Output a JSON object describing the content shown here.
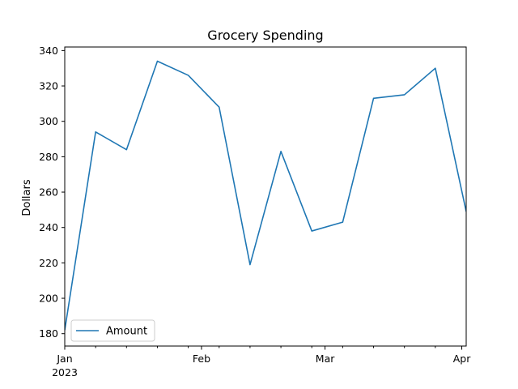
{
  "chart_data": {
    "type": "line",
    "title": "Grocery Spending",
    "xlabel": "",
    "ylabel": "Dollars",
    "x": [
      "2023-01-01",
      "2023-01-08",
      "2023-01-15",
      "2023-01-22",
      "2023-01-29",
      "2023-02-05",
      "2023-02-12",
      "2023-02-19",
      "2023-02-26",
      "2023-03-05",
      "2023-03-12",
      "2023-03-19",
      "2023-03-26",
      "2023-04-02"
    ],
    "series": [
      {
        "name": "Amount",
        "color": "#1f77b4",
        "values": [
          182,
          294,
          284,
          334,
          326,
          308,
          219,
          283,
          238,
          243,
          313,
          315,
          330,
          249
        ]
      }
    ],
    "xlim": [
      "2023-01-01",
      "2023-04-02"
    ],
    "ylim": [
      173,
      342
    ],
    "y_ticks": [
      180,
      200,
      220,
      240,
      260,
      280,
      300,
      320,
      340
    ],
    "x_major_ticks": [
      {
        "date": "2023-01-01",
        "label": "Jan",
        "sublabel": "2023"
      },
      {
        "date": "2023-02-01",
        "label": "Feb",
        "sublabel": ""
      },
      {
        "date": "2023-03-01",
        "label": "Mar",
        "sublabel": ""
      },
      {
        "date": "2023-04-01",
        "label": "Apr",
        "sublabel": ""
      }
    ],
    "x_minor_ticks": [
      "2023-01-08",
      "2023-01-15",
      "2023-01-22",
      "2023-01-29",
      "2023-02-05",
      "2023-02-12",
      "2023-02-19",
      "2023-02-26",
      "2023-03-05",
      "2023-03-12",
      "2023-03-19",
      "2023-03-26"
    ],
    "grid": false,
    "legend": "lower-left"
  }
}
